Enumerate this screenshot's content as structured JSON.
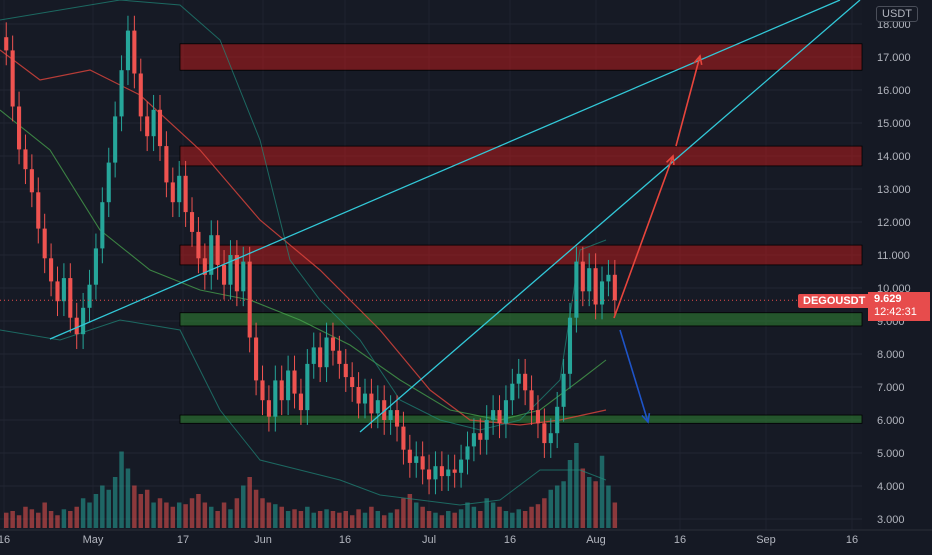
{
  "chart_data": {
    "type": "candlestick",
    "symbol": "DEGOUSDT",
    "currency": "USDT",
    "last_price": "9.629",
    "countdown": "12:42:31",
    "y_ticks": [
      "3.000",
      "4.000",
      "5.000",
      "6.000",
      "7.000",
      "8.000",
      "9.000",
      "10.000",
      "11.000",
      "12.000",
      "13.000",
      "14.000",
      "15.000",
      "16.000",
      "17.000",
      "18.000"
    ],
    "x_ticks": [
      "16",
      "May",
      "17",
      "Jun",
      "16",
      "Jul",
      "16",
      "Aug",
      "16",
      "Sep",
      "16"
    ],
    "ylim": [
      2.8,
      18.7
    ],
    "zones": [
      {
        "kind": "resistance",
        "low": 16.6,
        "high": 17.4
      },
      {
        "kind": "resistance",
        "low": 13.7,
        "high": 14.3
      },
      {
        "kind": "resistance",
        "low": 10.7,
        "high": 11.3
      },
      {
        "kind": "support",
        "low": 8.85,
        "high": 9.25
      },
      {
        "kind": "support",
        "low": 5.9,
        "high": 6.15
      }
    ],
    "closes": [
      17.2,
      15.5,
      14.2,
      13.6,
      12.9,
      11.8,
      10.9,
      10.2,
      9.6,
      10.3,
      9.1,
      8.6,
      9.4,
      10.1,
      11.2,
      12.6,
      13.8,
      15.2,
      16.6,
      17.8,
      16.5,
      15.2,
      14.6,
      15.4,
      14.3,
      13.2,
      12.6,
      13.4,
      12.3,
      11.7,
      10.9,
      10.4,
      11.6,
      10.7,
      10.1,
      11.0,
      9.9,
      10.8,
      8.5,
      7.2,
      6.6,
      6.1,
      7.2,
      6.6,
      7.5,
      6.8,
      6.3,
      7.7,
      8.2,
      7.6,
      8.5,
      8.1,
      7.7,
      7.3,
      7.0,
      6.5,
      6.8,
      6.2,
      6.6,
      6.0,
      6.3,
      5.8,
      5.1,
      4.7,
      4.9,
      4.5,
      4.2,
      4.6,
      4.3,
      4.5,
      4.4,
      4.8,
      5.2,
      5.6,
      5.4,
      6.0,
      6.3,
      5.9,
      6.6,
      7.1,
      7.4,
      6.9,
      6.3,
      5.9,
      5.3,
      5.6,
      6.4,
      7.4,
      9.1,
      10.8,
      9.9,
      10.6,
      9.5,
      10.2,
      10.4,
      9.629
    ],
    "volume_scale": [
      0.18,
      0.2,
      0.15,
      0.25,
      0.22,
      0.18,
      0.3,
      0.2,
      0.15,
      0.22,
      0.2,
      0.25,
      0.35,
      0.3,
      0.4,
      0.5,
      0.45,
      0.6,
      0.9,
      0.7,
      0.5,
      0.4,
      0.45,
      0.3,
      0.35,
      0.3,
      0.25,
      0.3,
      0.28,
      0.35,
      0.4,
      0.3,
      0.25,
      0.2,
      0.3,
      0.22,
      0.35,
      0.5,
      0.6,
      0.45,
      0.35,
      0.3,
      0.28,
      0.25,
      0.2,
      0.22,
      0.2,
      0.25,
      0.18,
      0.2,
      0.22,
      0.2,
      0.18,
      0.2,
      0.15,
      0.22,
      0.18,
      0.25,
      0.2,
      0.15,
      0.18,
      0.22,
      0.35,
      0.4,
      0.3,
      0.25,
      0.2,
      0.18,
      0.15,
      0.2,
      0.18,
      0.22,
      0.3,
      0.25,
      0.2,
      0.35,
      0.3,
      0.25,
      0.2,
      0.18,
      0.22,
      0.2,
      0.25,
      0.28,
      0.35,
      0.45,
      0.5,
      0.55,
      0.8,
      1.0,
      0.7,
      0.6,
      0.55,
      0.85,
      0.5,
      0.3
    ],
    "colors": {
      "up": "#26a69a",
      "down": "#ef5350",
      "trend": "#32c8d8",
      "arrow_up": "#e8453c",
      "arrow_down": "#1e54c8",
      "support": "#2e7d32",
      "resistance": "#b71c1c"
    }
  }
}
